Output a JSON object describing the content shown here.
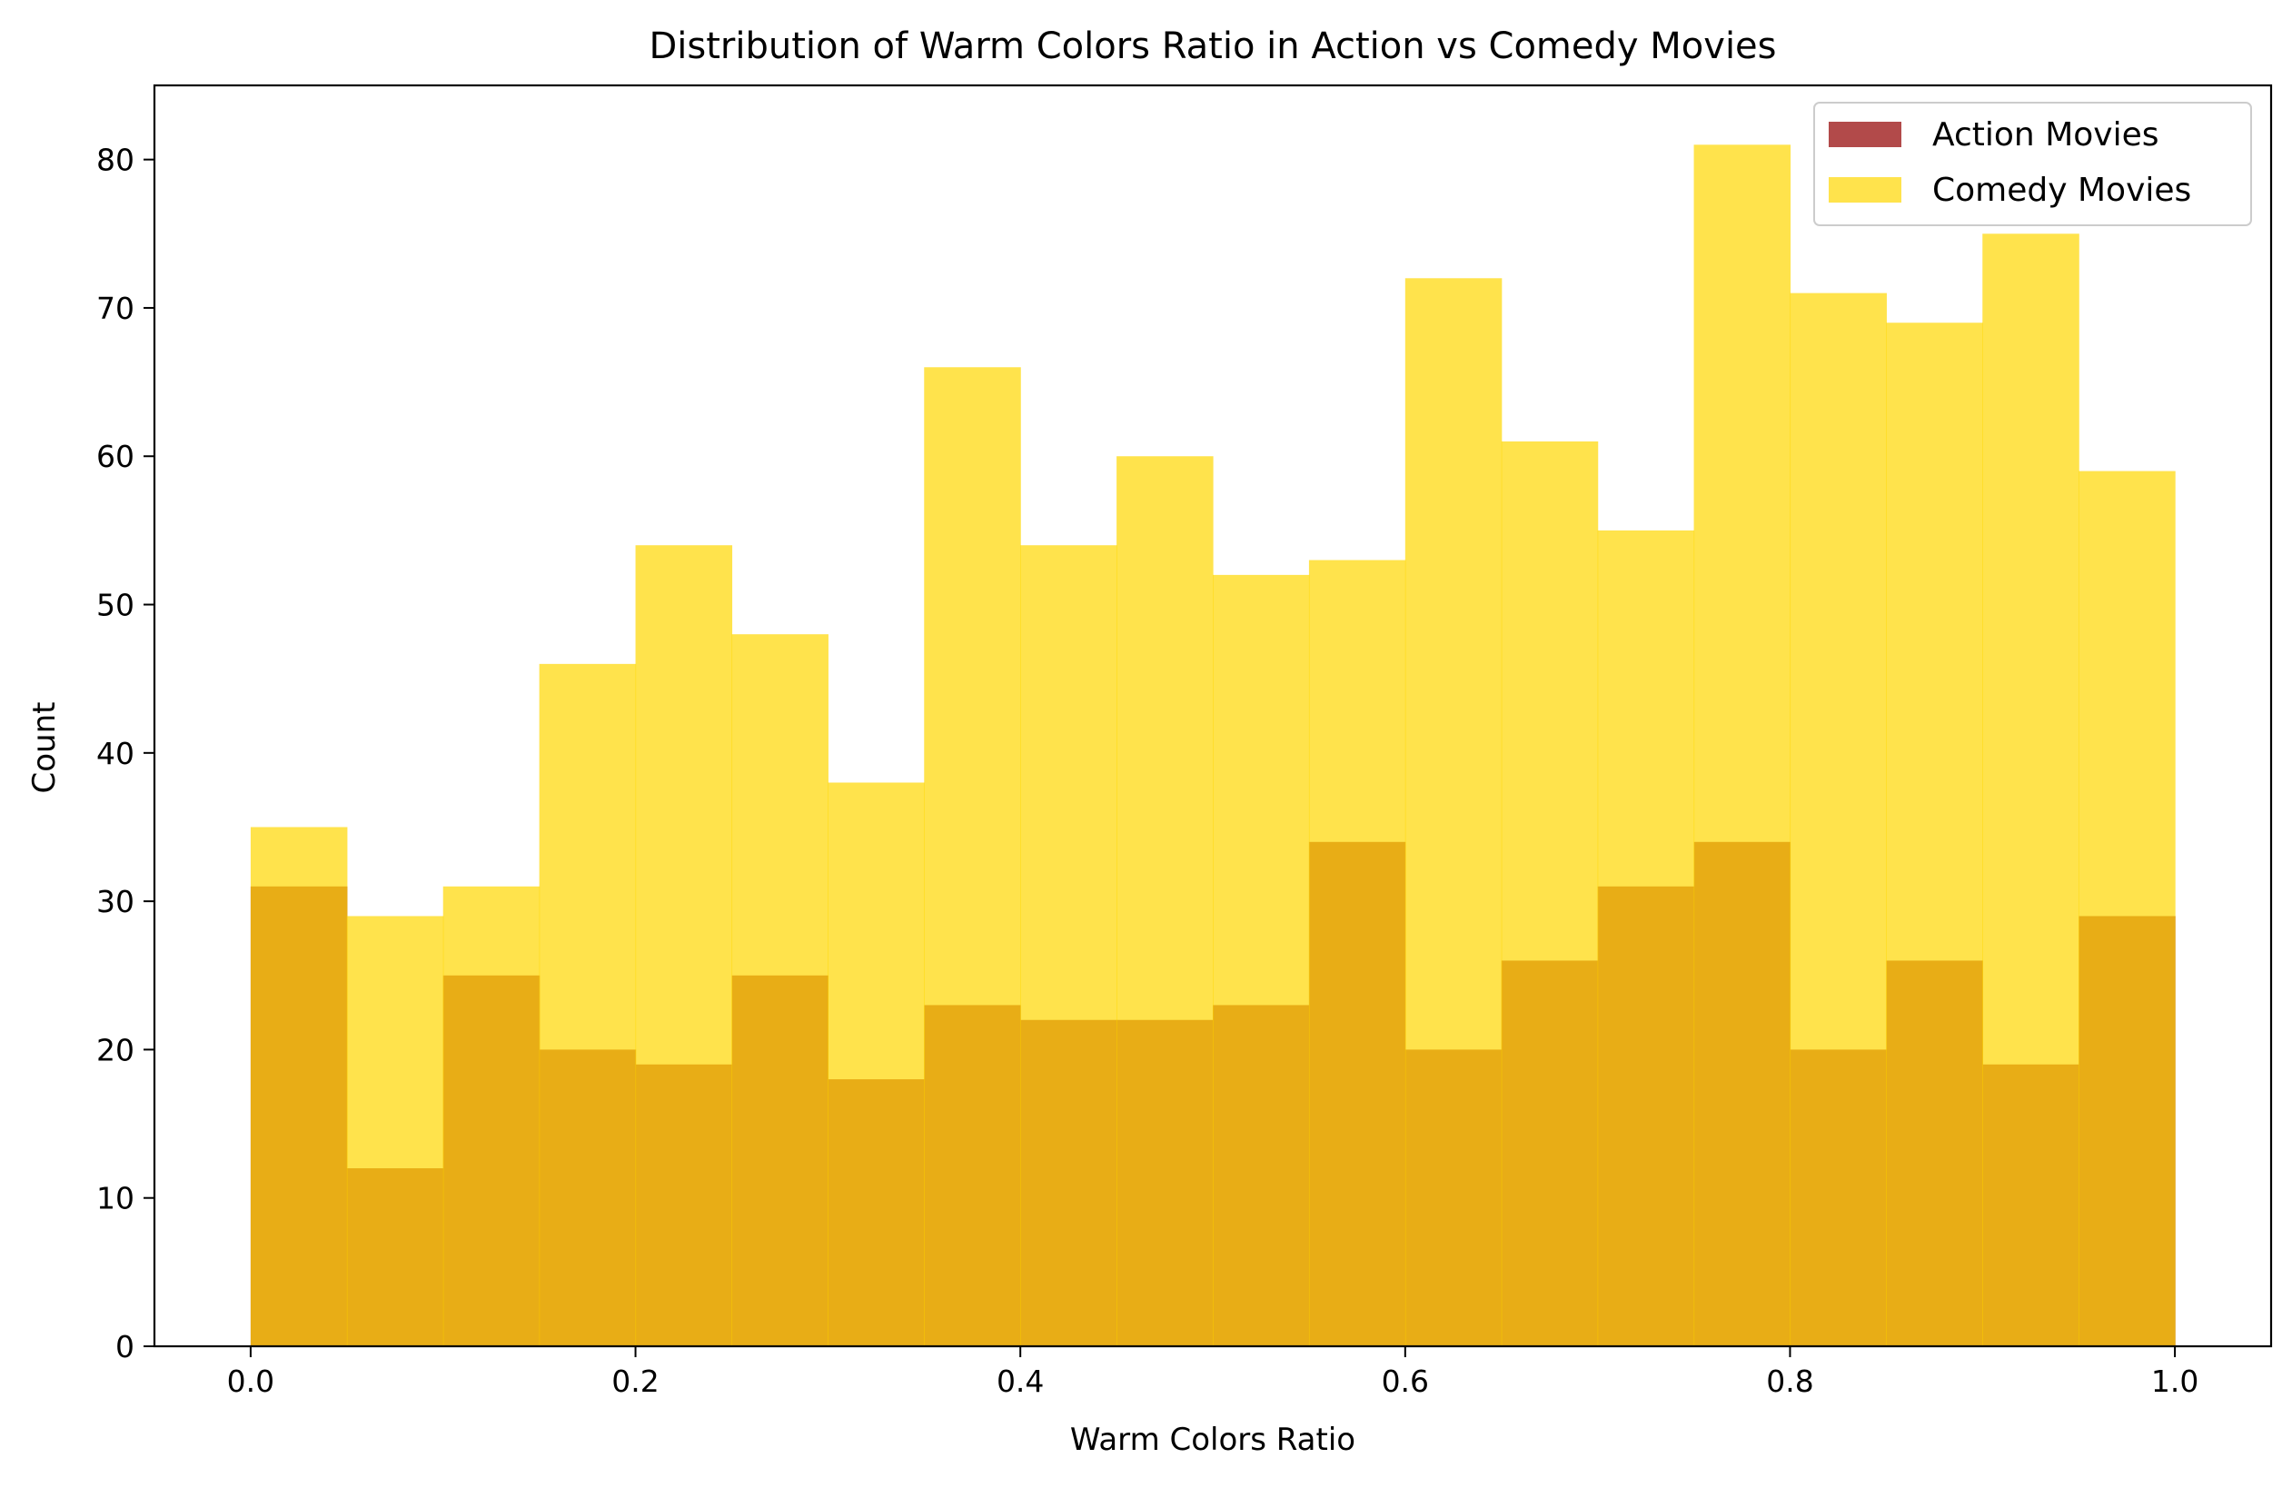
{
  "chart_data": {
    "type": "bar",
    "title": "Distribution of Warm Colors Ratio in Action vs Comedy Movies",
    "xlabel": "Warm Colors Ratio",
    "ylabel": "Count",
    "xlim": [
      -0.05,
      1.05
    ],
    "ylim": [
      0,
      85
    ],
    "x_ticks": [
      0.0,
      0.2,
      0.4,
      0.6,
      0.8,
      1.0
    ],
    "x_tick_labels": [
      "0.0",
      "0.2",
      "0.4",
      "0.6",
      "0.8",
      "1.0"
    ],
    "y_ticks": [
      0,
      10,
      20,
      30,
      40,
      50,
      60,
      70,
      80
    ],
    "y_tick_labels": [
      "0",
      "10",
      "20",
      "30",
      "40",
      "50",
      "60",
      "70",
      "80"
    ],
    "grid": false,
    "legend_position": "top-right",
    "bin_edges": [
      0.0,
      0.05,
      0.1,
      0.15,
      0.2,
      0.25,
      0.3,
      0.35,
      0.4,
      0.45,
      0.5,
      0.55,
      0.6,
      0.65,
      0.7,
      0.75,
      0.8,
      0.85,
      0.9,
      0.95,
      1.0
    ],
    "series": [
      {
        "name": "Action Movies",
        "color": "#a52a2a",
        "opacity": 0.85,
        "values": [
          31,
          12,
          25,
          20,
          19,
          25,
          18,
          23,
          22,
          22,
          23,
          34,
          20,
          26,
          31,
          34,
          20,
          26,
          19,
          29
        ]
      },
      {
        "name": "Comedy Movies",
        "color": "#ffd700",
        "opacity": 0.7,
        "values": [
          35,
          29,
          31,
          46,
          54,
          48,
          38,
          66,
          54,
          60,
          52,
          53,
          72,
          61,
          55,
          81,
          71,
          69,
          75,
          59
        ]
      }
    ]
  }
}
